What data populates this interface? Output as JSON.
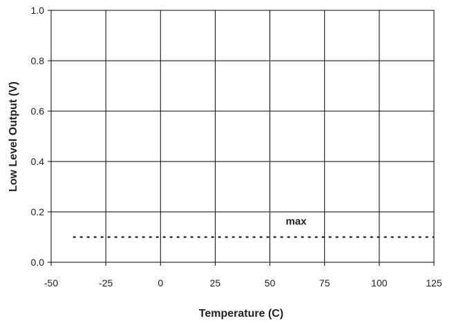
{
  "chart_data": {
    "type": "line",
    "title": "",
    "xlabel": "Temperature (C)",
    "ylabel": "Low Level Output (V)",
    "xlim": [
      -50,
      125
    ],
    "ylim": [
      0.0,
      1.0
    ],
    "x_ticks": [
      -50,
      -25,
      0,
      25,
      50,
      75,
      100,
      125
    ],
    "x_tick_labels": [
      "-50",
      "-25",
      "0",
      "25",
      "50",
      "75",
      "100",
      "125"
    ],
    "y_ticks": [
      0.0,
      0.2,
      0.4,
      0.6,
      0.8,
      1.0
    ],
    "y_tick_labels": [
      "0.0",
      "0.2",
      "0.4",
      "0.6",
      "0.8",
      "1.0"
    ],
    "grid": true,
    "legend": "none",
    "series": [
      {
        "name": "max",
        "style": "dashed",
        "color": "#000000",
        "x": [
          -40,
          125
        ],
        "y": [
          0.1,
          0.1
        ]
      }
    ],
    "annotations": [
      {
        "text": "max",
        "x": 62,
        "y": 0.15
      }
    ]
  }
}
